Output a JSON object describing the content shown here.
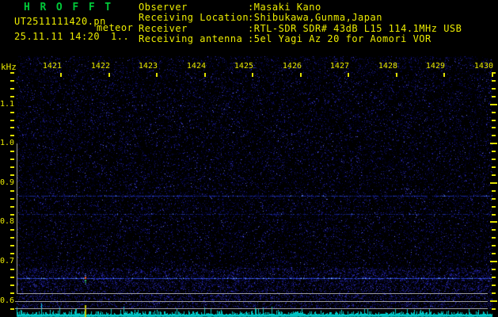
{
  "header": {
    "title": "H R O F F T",
    "filename": "UT2511111420.pn",
    "station": "meteor",
    "datetime": "25.11.11 14:20",
    "counter": "1..",
    "fields": [
      {
        "label": "Observer",
        "value": ":Masaki Kano"
      },
      {
        "label": "Receiving Location",
        "value": ":Shibukawa,Gunma,Japan"
      },
      {
        "label": "Receiver",
        "value": ":RTL-SDR SDR# 43dB L15 114.1MHz USB"
      },
      {
        "label": "Receiving antenna",
        "value": ":5el Yagi Az 20 for Aomori VOR"
      }
    ]
  },
  "chart_data": {
    "type": "heatmap",
    "title": "HROFFT 10-minute radio meteor observation spectrogram",
    "x_ticks": [
      "1421",
      "1422",
      "1423",
      "1424",
      "1425",
      "1426",
      "1427",
      "1428",
      "1429",
      "1430"
    ],
    "x_range_ut": [
      "14:20",
      "14:30"
    ],
    "y_ticks": [
      "1.1",
      "1.0",
      "0.9",
      "0.8",
      "0.7",
      "0.6"
    ],
    "y_unit": "kHz",
    "y_range_khz": [
      0.58,
      1.18
    ],
    "carrier_lines": [
      {
        "khz": 0.867,
        "strength": "weak"
      },
      {
        "khz": 0.822,
        "strength": "very-weak"
      },
      {
        "khz": 0.657,
        "strength": "strong"
      }
    ],
    "meteor_echoes": [
      {
        "time_ut": "14:21:30",
        "khz": 0.657,
        "appearance": "short vertical red/green streak"
      }
    ],
    "detection_strip": {
      "marker_times_ut": [
        "14:21:30"
      ]
    },
    "noise_floor": "cyan signal-level trace along bottom edge",
    "grid": false,
    "legend": false
  },
  "colors": {
    "background": "#000000",
    "text_yellow": "#ecec00",
    "title_green": "#00c838",
    "noise_blue": "#2222a2",
    "signal_blue": "#2038c8",
    "spark_blue": "#8fd0ff",
    "echo_red": "#ff4020",
    "echo_green": "#30c050",
    "trace_cyan": "#00c8c8",
    "marker_yellow": "#cccc00",
    "grid_gray": "#9a9a9a"
  }
}
